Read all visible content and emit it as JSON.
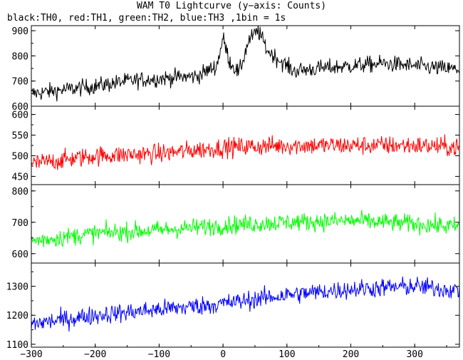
{
  "header": {
    "title": "WAM T0 Lightcurve (y−axis: Counts)",
    "subtitle": "black:TH0, red:TH1, green:TH2, blue:TH3 ,1bin = 1s"
  },
  "chart_data": {
    "type": "line",
    "title": "WAM T0 Lightcurve (y−axis: Counts)",
    "subtitle": "black:TH0, red:TH1, green:TH2, blue:TH3 ,1bin = 1s",
    "xlim": [
      -300,
      370
    ],
    "xticks": [
      -300,
      -200,
      -100,
      0,
      100,
      200,
      300
    ],
    "xtick_labels": [
      "−300",
      "−200",
      "−100",
      "0",
      "100",
      "200",
      "300"
    ],
    "x_step": 1,
    "panels": [
      {
        "series": "TH0",
        "color": "#000000",
        "ylim": [
          600,
          920
        ],
        "yticks": [
          600,
          700,
          800,
          900
        ],
        "ytick_labels": [
          "600",
          "700",
          "800",
          "900"
        ],
        "trend": [
          [
            -300,
            650
          ],
          [
            -200,
            680
          ],
          [
            -150,
            700
          ],
          [
            -100,
            710
          ],
          [
            -40,
            720
          ],
          [
            -10,
            760
          ],
          [
            0,
            870
          ],
          [
            10,
            780
          ],
          [
            25,
            730
          ],
          [
            40,
            860
          ],
          [
            55,
            900
          ],
          [
            70,
            820
          ],
          [
            90,
            780
          ],
          [
            110,
            740
          ],
          [
            150,
            750
          ],
          [
            200,
            760
          ],
          [
            250,
            770
          ],
          [
            300,
            760
          ],
          [
            370,
            745
          ]
        ],
        "noise_amplitude": 28
      },
      {
        "series": "TH1",
        "color": "#ff0000",
        "ylim": [
          430,
          620
        ],
        "yticks": [
          450,
          500,
          550,
          600
        ],
        "ytick_labels": [
          "450",
          "500",
          "550",
          "600"
        ],
        "trend": [
          [
            -300,
            480
          ],
          [
            -200,
            500
          ],
          [
            -100,
            505
          ],
          [
            0,
            520
          ],
          [
            100,
            525
          ],
          [
            200,
            525
          ],
          [
            300,
            525
          ],
          [
            370,
            520
          ]
        ],
        "noise_amplitude": 20
      },
      {
        "series": "TH2",
        "color": "#00ff00",
        "ylim": [
          570,
          820
        ],
        "yticks": [
          600,
          700,
          800
        ],
        "ytick_labels": [
          "600",
          "700",
          "800"
        ],
        "trend": [
          [
            -300,
            640
          ],
          [
            -200,
            665
          ],
          [
            -100,
            675
          ],
          [
            0,
            690
          ],
          [
            100,
            700
          ],
          [
            200,
            705
          ],
          [
            300,
            695
          ],
          [
            370,
            685
          ]
        ],
        "noise_amplitude": 25
      },
      {
        "series": "TH3",
        "color": "#0000ff",
        "ylim": [
          1090,
          1380
        ],
        "yticks": [
          1100,
          1200,
          1300
        ],
        "ytick_labels": [
          "1100",
          "1200",
          "1300"
        ],
        "trend": [
          [
            -300,
            1170
          ],
          [
            -200,
            1200
          ],
          [
            -100,
            1220
          ],
          [
            0,
            1240
          ],
          [
            100,
            1270
          ],
          [
            200,
            1290
          ],
          [
            300,
            1300
          ],
          [
            370,
            1285
          ]
        ],
        "noise_amplitude": 28
      }
    ]
  }
}
